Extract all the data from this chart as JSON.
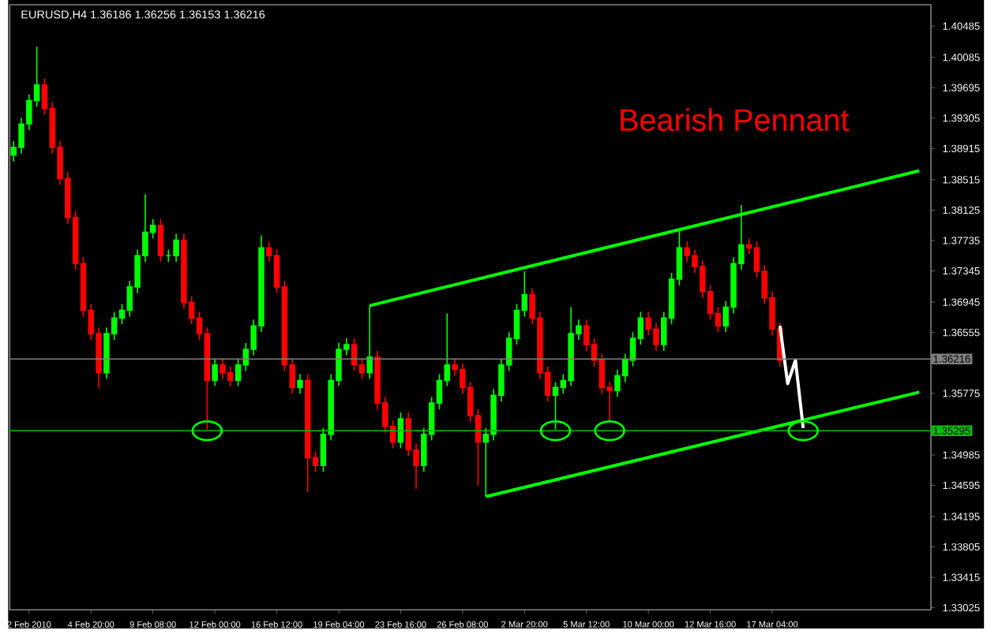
{
  "chart_data": {
    "type": "candlestick",
    "title": "EURUSD,H4 1.36186 1.36256 1.36153 1.36216",
    "annotations": [
      "Bearish Pennant"
    ],
    "categories": [
      null,
      null,
      "2 Feb 2010",
      null,
      null,
      null,
      null,
      null,
      null,
      null,
      "4 Feb 20:00",
      null,
      null,
      null,
      null,
      null,
      null,
      null,
      "9 Feb 08:00",
      null,
      null,
      null,
      null,
      null,
      null,
      null,
      "12 Feb 00:00",
      null,
      null,
      null,
      null,
      null,
      null,
      null,
      "16 Feb 12:00",
      null,
      null,
      null,
      null,
      null,
      null,
      null,
      "19 Feb 04:00",
      null,
      null,
      null,
      null,
      null,
      null,
      null,
      "23 Feb 16:00",
      null,
      null,
      null,
      null,
      null,
      null,
      null,
      "26 Feb 08:00",
      null,
      null,
      null,
      null,
      null,
      null,
      null,
      "2 Mar 20:00",
      null,
      null,
      null,
      null,
      null,
      null,
      null,
      "5 Mar 12:00",
      null,
      null,
      null,
      null,
      null,
      null,
      null,
      "10 Mar 00:00",
      null,
      null,
      null,
      null,
      null,
      null,
      null,
      "12 Mar 16:00",
      null,
      null,
      null,
      null,
      null,
      null,
      null,
      "17 Mar 04:00",
      null,
      null,
      null,
      null,
      null,
      null,
      null,
      null,
      null,
      null,
      null,
      null,
      null,
      null,
      null,
      null,
      null,
      null,
      null,
      null
    ],
    "ohlc": [
      [
        1.3883,
        1.3901,
        1.3875,
        1.3893
      ],
      [
        1.3893,
        1.3931,
        1.3885,
        1.3923
      ],
      [
        1.3923,
        1.3961,
        1.3915,
        1.3953
      ],
      [
        1.3953,
        1.4022,
        1.3945,
        1.3973
      ],
      [
        1.3973,
        1.3981,
        1.3935,
        1.3943
      ],
      [
        1.3943,
        1.3951,
        1.3885,
        1.3893
      ],
      [
        1.3893,
        1.3901,
        1.3845,
        1.3853
      ],
      [
        1.3853,
        1.3861,
        1.3795,
        1.3803
      ],
      [
        1.3803,
        1.3811,
        1.3736,
        1.3744
      ],
      [
        1.3744,
        1.3752,
        1.3676,
        1.3684
      ],
      [
        1.3684,
        1.3692,
        1.3646,
        1.3654
      ],
      [
        1.3654,
        1.3662,
        1.3585,
        1.3604
      ],
      [
        1.3604,
        1.3662,
        1.3596,
        1.3654
      ],
      [
        1.3654,
        1.3682,
        1.3646,
        1.3674
      ],
      [
        1.3674,
        1.3692,
        1.3666,
        1.3684
      ],
      [
        1.3684,
        1.3722,
        1.3676,
        1.3714
      ],
      [
        1.3714,
        1.3762,
        1.3706,
        1.3754
      ],
      [
        1.3754,
        1.3833,
        1.3746,
        1.3784
      ],
      [
        1.3784,
        1.3801,
        1.3776,
        1.3793
      ],
      [
        1.3793,
        1.3801,
        1.3746,
        1.3754
      ],
      [
        1.3754,
        1.3762,
        1.3746,
        1.3754
      ],
      [
        1.3754,
        1.3782,
        1.3746,
        1.3774
      ],
      [
        1.3774,
        1.3782,
        1.3686,
        1.3694
      ],
      [
        1.3694,
        1.3702,
        1.3666,
        1.3674
      ],
      [
        1.3674,
        1.3682,
        1.3646,
        1.3654
      ],
      [
        1.3654,
        1.3662,
        1.3531,
        1.3594
      ],
      [
        1.3594,
        1.3622,
        1.3587,
        1.3614
      ],
      [
        1.3614,
        1.3622,
        1.3596,
        1.3604
      ],
      [
        1.3604,
        1.3612,
        1.3587,
        1.3594
      ],
      [
        1.3594,
        1.3622,
        1.3587,
        1.3614
      ],
      [
        1.3614,
        1.3642,
        1.3606,
        1.3634
      ],
      [
        1.3634,
        1.3672,
        1.3626,
        1.3664
      ],
      [
        1.3664,
        1.378,
        1.3656,
        1.3764
      ],
      [
        1.3764,
        1.3772,
        1.3746,
        1.3754
      ],
      [
        1.3754,
        1.3762,
        1.3706,
        1.3714
      ],
      [
        1.3714,
        1.3722,
        1.3606,
        1.3614
      ],
      [
        1.3614,
        1.3622,
        1.3577,
        1.3585
      ],
      [
        1.3585,
        1.3602,
        1.3577,
        1.3594
      ],
      [
        1.3594,
        1.3602,
        1.3451,
        1.3495
      ],
      [
        1.3495,
        1.3503,
        1.3477,
        1.3485
      ],
      [
        1.3485,
        1.3533,
        1.3477,
        1.3525
      ],
      [
        1.3525,
        1.3602,
        1.3517,
        1.3594
      ],
      [
        1.3594,
        1.3642,
        1.3587,
        1.3634
      ],
      [
        1.3634,
        1.3648,
        1.3626,
        1.364
      ],
      [
        1.364,
        1.3648,
        1.3606,
        1.3614
      ],
      [
        1.3614,
        1.3622,
        1.3596,
        1.3604
      ],
      [
        1.3604,
        1.369,
        1.3596,
        1.3624
      ],
      [
        1.3624,
        1.3632,
        1.3557,
        1.3565
      ],
      [
        1.3565,
        1.3573,
        1.3527,
        1.3535
      ],
      [
        1.3535,
        1.3543,
        1.3507,
        1.3515
      ],
      [
        1.3515,
        1.3553,
        1.3507,
        1.3545
      ],
      [
        1.3545,
        1.3553,
        1.3497,
        1.3505
      ],
      [
        1.3505,
        1.3513,
        1.3455,
        1.3485
      ],
      [
        1.3485,
        1.3533,
        1.3477,
        1.3525
      ],
      [
        1.3525,
        1.3573,
        1.3517,
        1.3565
      ],
      [
        1.3565,
        1.3602,
        1.3557,
        1.3594
      ],
      [
        1.3594,
        1.368,
        1.3587,
        1.3614
      ],
      [
        1.3614,
        1.3622,
        1.36,
        1.3608
      ],
      [
        1.3608,
        1.3616,
        1.3577,
        1.3585
      ],
      [
        1.3585,
        1.3592,
        1.3541,
        1.3549
      ],
      [
        1.3549,
        1.3557,
        1.3459,
        1.3515
      ],
      [
        1.3515,
        1.3533,
        1.3445,
        1.3525
      ],
      [
        1.3525,
        1.3583,
        1.3517,
        1.3575
      ],
      [
        1.3575,
        1.3622,
        1.3567,
        1.3614
      ],
      [
        1.3614,
        1.3656,
        1.3606,
        1.3648
      ],
      [
        1.3648,
        1.3692,
        1.364,
        1.3684
      ],
      [
        1.3684,
        1.3734,
        1.3676,
        1.3704
      ],
      [
        1.3704,
        1.3712,
        1.3666,
        1.3674
      ],
      [
        1.3674,
        1.3682,
        1.3596,
        1.3604
      ],
      [
        1.3604,
        1.3612,
        1.3567,
        1.3575
      ],
      [
        1.3575,
        1.3592,
        1.3531,
        1.3585
      ],
      [
        1.3585,
        1.3602,
        1.3577,
        1.3594
      ],
      [
        1.3594,
        1.3688,
        1.3587,
        1.3654
      ],
      [
        1.3654,
        1.3672,
        1.3646,
        1.3664
      ],
      [
        1.3664,
        1.3672,
        1.3632,
        1.364
      ],
      [
        1.364,
        1.3648,
        1.3612,
        1.362
      ],
      [
        1.362,
        1.3628,
        1.3577,
        1.3585
      ],
      [
        1.3585,
        1.3592,
        1.3541,
        1.3581
      ],
      [
        1.3581,
        1.3608,
        1.3573,
        1.36
      ],
      [
        1.36,
        1.3628,
        1.3592,
        1.362
      ],
      [
        1.362,
        1.3656,
        1.3612,
        1.3648
      ],
      [
        1.3648,
        1.3682,
        1.364,
        1.3674
      ],
      [
        1.3674,
        1.3682,
        1.3652,
        1.366
      ],
      [
        1.366,
        1.3668,
        1.3632,
        1.364
      ],
      [
        1.364,
        1.3682,
        1.3632,
        1.3674
      ],
      [
        1.3674,
        1.3732,
        1.3666,
        1.3724
      ],
      [
        1.3724,
        1.3787,
        1.3716,
        1.3764
      ],
      [
        1.3764,
        1.3772,
        1.3746,
        1.3754
      ],
      [
        1.3754,
        1.3762,
        1.3732,
        1.374
      ],
      [
        1.374,
        1.3748,
        1.37,
        1.3708
      ],
      [
        1.3708,
        1.3716,
        1.3672,
        1.368
      ],
      [
        1.368,
        1.3688,
        1.3656,
        1.3664
      ],
      [
        1.3664,
        1.3696,
        1.3656,
        1.3688
      ],
      [
        1.3688,
        1.3752,
        1.368,
        1.3744
      ],
      [
        1.3744,
        1.3819,
        1.3736,
        1.3768
      ],
      [
        1.3768,
        1.3776,
        1.3756,
        1.3764
      ],
      [
        1.3764,
        1.3772,
        1.3726,
        1.3734
      ],
      [
        1.3734,
        1.3742,
        1.3692,
        1.37
      ],
      [
        1.37,
        1.3708,
        1.3652,
        1.366
      ],
      [
        1.366,
        1.3668,
        1.3612,
        1.362
      ],
      null,
      null,
      null,
      null,
      null,
      null,
      null,
      null,
      null,
      null,
      null,
      null,
      null,
      null,
      null,
      null,
      null,
      null,
      null
    ],
    "colors": [
      "#00ff00",
      "#00ff00",
      "#00ff00",
      "#00ff00",
      "#ff0000",
      "#ff0000",
      "#ff0000",
      "#ff0000",
      "#ff0000",
      "#ff0000",
      "#ff0000",
      "#ff0000",
      "#00ff00",
      "#00ff00",
      "#00ff00",
      "#00ff00",
      "#00ff00",
      "#00ff00",
      "#00ff00",
      "#ff0000",
      "#00ff00",
      "#00ff00",
      "#ff0000",
      "#ff0000",
      "#ff0000",
      "#ff0000",
      "#00ff00",
      "#ff0000",
      "#ff0000",
      "#00ff00",
      "#00ff00",
      "#00ff00",
      "#00ff00",
      "#ff0000",
      "#ff0000",
      "#ff0000",
      "#ff0000",
      "#00ff00",
      "#ff0000",
      "#ff0000",
      "#00ff00",
      "#00ff00",
      "#00ff00",
      "#00ff00",
      "#ff0000",
      "#ff0000",
      "#00ff00",
      "#ff0000",
      "#ff0000",
      "#ff0000",
      "#00ff00",
      "#ff0000",
      "#ff0000",
      "#00ff00",
      "#00ff00",
      "#00ff00",
      "#00ff00",
      "#ff0000",
      "#ff0000",
      "#ff0000",
      "#ff0000",
      "#00ff00",
      "#00ff00",
      "#00ff00",
      "#00ff00",
      "#00ff00",
      "#00ff00",
      "#ff0000",
      "#ff0000",
      "#ff0000",
      "#00ff00",
      "#00ff00",
      "#00ff00",
      "#00ff00",
      "#ff0000",
      "#ff0000",
      "#ff0000",
      "#ff0000",
      "#00ff00",
      "#00ff00",
      "#00ff00",
      "#00ff00",
      "#ff0000",
      "#ff0000",
      "#00ff00",
      "#00ff00",
      "#00ff00",
      "#ff0000",
      "#ff0000",
      "#ff0000",
      "#ff0000",
      "#ff0000",
      "#00ff00",
      "#00ff00",
      "#00ff00",
      "#ff0000",
      "#ff0000",
      "#ff0000",
      "#ff0000",
      "#ff0000",
      null,
      null,
      null,
      null,
      null,
      null,
      null,
      null,
      null,
      null,
      null,
      null,
      null,
      null,
      null,
      null,
      null,
      null,
      null
    ],
    "series": [
      {
        "type": "line",
        "color": "#00ff00",
        "values": [
          null,
          null,
          null,
          null,
          null,
          null,
          null,
          null,
          null,
          null,
          null,
          null,
          null,
          null,
          null,
          null,
          null,
          null,
          null,
          null,
          null,
          null,
          null,
          null,
          null,
          null,
          null,
          null,
          null,
          null,
          null,
          null,
          null,
          null,
          null,
          null,
          null,
          null,
          null,
          null,
          null,
          null,
          null,
          null,
          null,
          null,
          1.369,
          null,
          null,
          null,
          null,
          null,
          null,
          null,
          null,
          null,
          null,
          null,
          null,
          null,
          null,
          null,
          null,
          null,
          null,
          null,
          null,
          null,
          null,
          null,
          null,
          null,
          null,
          null,
          null,
          null,
          null,
          null,
          null,
          null,
          null,
          null,
          null,
          null,
          null,
          null,
          null,
          null,
          null,
          null,
          null,
          null,
          null,
          null,
          null,
          null,
          null,
          null,
          null,
          null,
          null,
          null,
          null,
          null,
          null,
          null,
          null,
          null,
          null,
          null,
          null,
          null,
          null,
          null,
          null,
          null,
          null,
          1.3863,
          null
        ]
      },
      {
        "type": "line",
        "color": "#00ff00",
        "values": [
          null,
          null,
          null,
          null,
          null,
          null,
          null,
          null,
          null,
          null,
          null,
          null,
          null,
          null,
          null,
          null,
          null,
          null,
          null,
          null,
          null,
          null,
          null,
          null,
          null,
          null,
          null,
          null,
          null,
          null,
          null,
          null,
          null,
          null,
          null,
          null,
          null,
          null,
          null,
          null,
          null,
          null,
          null,
          null,
          null,
          null,
          null,
          null,
          null,
          null,
          null,
          null,
          null,
          null,
          null,
          null,
          null,
          null,
          null,
          null,
          null,
          1.3445,
          null,
          null,
          null,
          null,
          null,
          null,
          null,
          null,
          null,
          null,
          null,
          null,
          null,
          null,
          null,
          null,
          null,
          null,
          null,
          null,
          null,
          null,
          null,
          null,
          null,
          null,
          null,
          null,
          null,
          null,
          null,
          null,
          null,
          null,
          null,
          null,
          null,
          null,
          null,
          null,
          null,
          null,
          null,
          null,
          null,
          null,
          null,
          null,
          null,
          null,
          null,
          null,
          null,
          null,
          null,
          1.3579,
          null
        ]
      },
      {
        "type": "line",
        "color": "#ffffff",
        "values": [
          null,
          null,
          null,
          null,
          null,
          null,
          null,
          null,
          null,
          null,
          null,
          null,
          null,
          null,
          null,
          null,
          null,
          null,
          null,
          null,
          null,
          null,
          null,
          null,
          null,
          null,
          null,
          null,
          null,
          null,
          null,
          null,
          null,
          null,
          null,
          null,
          null,
          null,
          null,
          null,
          null,
          null,
          null,
          null,
          null,
          null,
          null,
          null,
          null,
          null,
          null,
          null,
          null,
          null,
          null,
          null,
          null,
          null,
          null,
          null,
          null,
          null,
          null,
          null,
          null,
          null,
          null,
          null,
          null,
          null,
          null,
          null,
          null,
          null,
          null,
          null,
          null,
          null,
          null,
          null,
          null,
          null,
          null,
          null,
          null,
          null,
          null,
          null,
          null,
          null,
          null,
          null,
          null,
          null,
          null,
          null,
          null,
          null,
          null,
          1.3664,
          1.359,
          1.362,
          1.3533,
          null,
          null,
          null,
          null,
          null,
          null,
          null,
          null,
          null,
          null,
          null,
          null,
          null,
          null,
          null,
          null
        ]
      }
    ],
    "ref_lines": [
      {
        "axis": "y",
        "value": 1.36216,
        "label": "1.36216",
        "color": "#808080"
      },
      {
        "axis": "y",
        "value": 1.35295,
        "label": "1.35295",
        "color": "#00c000"
      }
    ],
    "ylim": [
      1.33,
      1.4076
    ],
    "yticks": [
      1.40485,
      1.40085,
      1.39695,
      1.39305,
      1.38915,
      1.38515,
      1.38125,
      1.37735,
      1.37345,
      1.36945,
      1.36555,
      1.35775,
      1.34985,
      1.34595,
      1.34195,
      1.33805,
      1.33415,
      1.33025
    ]
  }
}
